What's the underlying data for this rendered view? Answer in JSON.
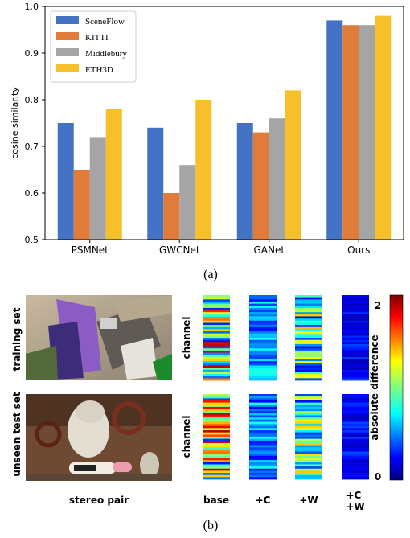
{
  "chart_data": {
    "type": "bar",
    "ylabel": "cosine similarity",
    "ylim": [
      0.5,
      1.0
    ],
    "yticks": [
      "0.5",
      "0.6",
      "0.7",
      "0.8",
      "0.9",
      "1.0"
    ],
    "categories": [
      "PSMNet",
      "GWCNet",
      "GANet",
      "Ours"
    ],
    "series": [
      {
        "name": "SceneFlow",
        "color": "#4472c4",
        "values": [
          0.75,
          0.74,
          0.75,
          0.97
        ]
      },
      {
        "name": "KITTI",
        "color": "#e07b39",
        "values": [
          0.65,
          0.6,
          0.73,
          0.96
        ]
      },
      {
        "name": "Middlebury",
        "color": "#a5a5a5",
        "values": [
          0.72,
          0.66,
          0.76,
          0.96
        ]
      },
      {
        "name": "ETH3D",
        "color": "#f6c02b",
        "values": [
          0.78,
          0.8,
          0.82,
          0.98
        ]
      }
    ],
    "legend": "top-left",
    "grid": false
  },
  "captions": {
    "a": "(a)",
    "b": "(b)"
  },
  "figure_b": {
    "row_labels": [
      "training set",
      "unseen test set"
    ],
    "stereo_label": "stereo pair",
    "channel_label": "channel",
    "columns": [
      "base",
      "+C",
      "+W",
      "+C\n+W"
    ],
    "colorbar_title": "absolute difference",
    "colorbar_max": "2",
    "colorbar_min": "0"
  }
}
